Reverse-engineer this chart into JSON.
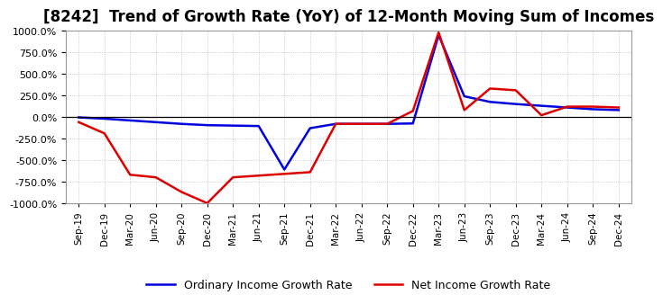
{
  "title": "[8242]  Trend of Growth Rate (YoY) of 12-Month Moving Sum of Incomes",
  "title_fontsize": 12,
  "background_color": "#ffffff",
  "plot_background": "#ffffff",
  "grid_color": "#aaaaaa",
  "ylim": [
    -1000,
    1000
  ],
  "yticks": [
    -1000,
    -750,
    -500,
    -250,
    0,
    250,
    500,
    750,
    1000
  ],
  "ordinary_income": {
    "label": "Ordinary Income Growth Rate",
    "color": "#0000dd",
    "x": [
      0,
      1,
      2,
      3,
      4,
      5,
      6,
      7,
      8,
      9,
      10,
      11,
      12,
      13,
      14,
      15,
      16,
      17,
      18,
      19,
      20,
      21
    ],
    "values": [
      -5,
      -20,
      -40,
      -60,
      -80,
      -95,
      -100,
      -105,
      -610,
      -130,
      -80,
      -80,
      -80,
      -75,
      950,
      240,
      175,
      150,
      130,
      110,
      90,
      80
    ]
  },
  "net_income": {
    "label": "Net Income Growth Rate",
    "color": "#dd0000",
    "x": [
      0,
      1,
      2,
      3,
      4,
      5,
      6,
      7,
      8,
      9,
      10,
      11,
      12,
      13,
      14,
      15,
      16,
      17,
      18,
      19,
      20,
      21
    ],
    "values": [
      -60,
      -190,
      -670,
      -700,
      -870,
      -1000,
      -700,
      -680,
      -660,
      -640,
      -80,
      -80,
      -80,
      70,
      980,
      80,
      330,
      310,
      20,
      120,
      120,
      110
    ]
  },
  "x_labels": [
    "Sep-19",
    "Dec-19",
    "Mar-20",
    "Jun-20",
    "Sep-20",
    "Dec-20",
    "Mar-21",
    "Jun-21",
    "Sep-21",
    "Dec-21",
    "Mar-22",
    "Jun-22",
    "Sep-22",
    "Dec-22",
    "Mar-23",
    "Jun-23",
    "Sep-23",
    "Dec-23",
    "Mar-24",
    "Jun-24",
    "Sep-24",
    "Dec-24"
  ],
  "legend_ncol": 2,
  "line_width": 1.8
}
